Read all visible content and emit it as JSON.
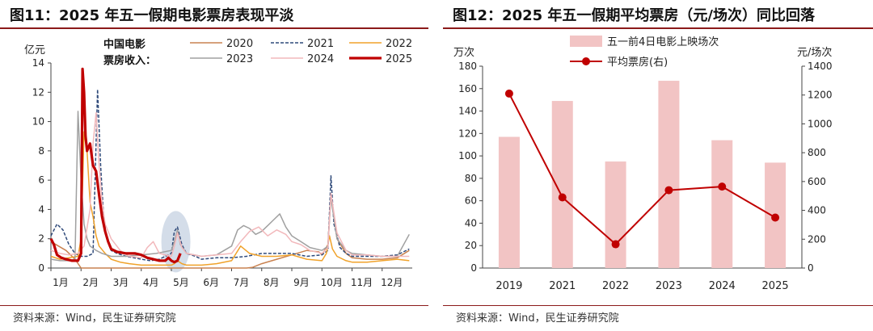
{
  "left_panel": {
    "title": "图11：2025 年五一假期电影票房表现平淡",
    "source": "资料来源：Wind，民生证券研究院",
    "legend_caption": "中国电影票房收入："
  },
  "right_panel": {
    "title": "图12：2025 年五一假期平均票房（元/场次）同比回落",
    "source": "资料来源：Wind，民生证券研究院"
  },
  "chart_data": [
    {
      "type": "line",
      "ylabel": "亿元",
      "ylim": [
        0,
        14
      ],
      "yticks": [
        0,
        2,
        4,
        6,
        8,
        10,
        12,
        14
      ],
      "x_tick_labels": [
        "1月",
        "2月",
        "3月",
        "4月",
        "5月",
        "6月",
        "7月",
        "8月",
        "9月",
        "10月",
        "11月",
        "12月"
      ],
      "legend_placement": "top-center",
      "grid": false,
      "annotation": "highlight ellipse around early May (五一 holiday)",
      "series": [
        {
          "name": "2020",
          "color": "#c98250",
          "style": "solid",
          "x": [
            0,
            0.5,
            0.8,
            1,
            2,
            3,
            4,
            5,
            6,
            6.5,
            6.7,
            7,
            7.5,
            8,
            8.5,
            8.9,
            9,
            9.2,
            9.3,
            9.5,
            9.8,
            10,
            10.5,
            11,
            11.5,
            11.9
          ],
          "y": [
            1.8,
            1.2,
            0.6,
            0,
            0,
            0,
            0,
            0,
            0,
            0,
            0.05,
            0.3,
            0.6,
            0.9,
            1.2,
            1.1,
            0.9,
            1.6,
            5.0,
            2.0,
            1.0,
            0.7,
            0.6,
            0.6,
            0.7,
            1.2
          ]
        },
        {
          "name": "2021",
          "color": "#2f4a7a",
          "style": "dashed",
          "x": [
            0,
            0.2,
            0.4,
            0.6,
            0.8,
            1,
            1.2,
            1.4,
            1.55,
            1.65,
            1.75,
            1.85,
            2,
            2.2,
            2.5,
            3,
            3.3,
            3.6,
            4,
            4.1,
            4.2,
            4.35,
            4.5,
            4.8,
            5,
            5.5,
            6,
            6.5,
            7,
            7.5,
            8,
            8.5,
            9,
            9.2,
            9.3,
            9.4,
            9.6,
            9.8,
            10,
            10.5,
            11,
            11.5,
            11.9
          ],
          "y": [
            2.2,
            3.0,
            2.6,
            1.6,
            1.0,
            0.8,
            0.8,
            1.0,
            12.2,
            7.0,
            3.5,
            2.0,
            1.2,
            1.0,
            0.8,
            0.6,
            0.5,
            0.6,
            1.0,
            2.5,
            2.8,
            1.6,
            1.0,
            0.8,
            0.6,
            0.7,
            0.7,
            0.8,
            1.0,
            1.0,
            1.0,
            0.8,
            0.9,
            1.2,
            6.3,
            3.0,
            1.4,
            1.0,
            0.8,
            0.8,
            0.8,
            0.9,
            1.3
          ]
        },
        {
          "name": "2022",
          "color": "#f0a22a",
          "style": "solid",
          "x": [
            0,
            0.3,
            0.6,
            0.9,
            1.0,
            1.1,
            1.2,
            1.3,
            1.4,
            1.5,
            1.6,
            1.8,
            2,
            2.3,
            2.6,
            3,
            3.5,
            4,
            4.1,
            4.2,
            4.35,
            4.5,
            5,
            5.5,
            6,
            6.3,
            6.6,
            7,
            7.5,
            8,
            8.5,
            9,
            9.15,
            9.25,
            9.35,
            9.5,
            9.8,
            10,
            10.5,
            11,
            11.5,
            11.9
          ],
          "y": [
            0.8,
            0.6,
            0.7,
            0.8,
            2.0,
            9.3,
            8.0,
            4.5,
            3.5,
            2.2,
            1.5,
            1.0,
            0.6,
            0.4,
            0.3,
            0.2,
            0.2,
            0.2,
            0.3,
            0.5,
            0.3,
            0.2,
            0.2,
            0.3,
            0.5,
            1.5,
            1.0,
            0.8,
            0.8,
            0.9,
            0.6,
            0.5,
            1.0,
            2.2,
            1.3,
            0.8,
            0.5,
            0.4,
            0.4,
            0.5,
            0.6,
            0.5
          ]
        },
        {
          "name": "2023",
          "color": "#a0a0a0",
          "style": "solid",
          "x": [
            0,
            0.3,
            0.6,
            0.8,
            0.9,
            1.0,
            1.1,
            1.2,
            1.3,
            1.5,
            1.7,
            2,
            2.5,
            3,
            3.5,
            4,
            4.1,
            4.2,
            4.3,
            4.5,
            5,
            5.5,
            6,
            6.2,
            6.4,
            6.6,
            6.8,
            7,
            7.2,
            7.4,
            7.6,
            7.8,
            8,
            8.3,
            8.6,
            9,
            9.2,
            9.3,
            9.5,
            9.8,
            10,
            10.5,
            11,
            11.5,
            11.9
          ],
          "y": [
            0.6,
            0.5,
            0.5,
            0.6,
            10.7,
            6.0,
            3.0,
            2.0,
            1.5,
            1.2,
            1.0,
            0.8,
            0.8,
            0.9,
            1.0,
            1.2,
            1.8,
            2.6,
            1.6,
            1.0,
            0.8,
            0.9,
            1.5,
            2.6,
            2.9,
            2.7,
            2.3,
            2.5,
            2.9,
            3.3,
            3.7,
            2.8,
            2.2,
            1.8,
            1.4,
            1.2,
            1.5,
            4.8,
            2.0,
            1.2,
            1.0,
            0.9,
            0.8,
            0.8,
            2.3
          ]
        },
        {
          "name": "2024",
          "color": "#f2b8bb",
          "style": "solid",
          "x": [
            0,
            0.3,
            0.6,
            0.9,
            1.1,
            1.3,
            1.4,
            1.5,
            1.6,
            1.7,
            1.8,
            2,
            2.3,
            2.6,
            3,
            3.2,
            3.4,
            3.6,
            4,
            4.1,
            4.2,
            4.35,
            4.5,
            5,
            5.5,
            6,
            6.3,
            6.6,
            6.9,
            7.2,
            7.5,
            7.8,
            8,
            8.3,
            8.6,
            9,
            9.2,
            9.3,
            9.5,
            9.8,
            10,
            10.5,
            11,
            11.5,
            11.9
          ],
          "y": [
            1.2,
            1.0,
            0.9,
            1.0,
            1.5,
            4.0,
            8.5,
            10.6,
            7.0,
            4.5,
            3.0,
            2.0,
            1.2,
            0.8,
            0.7,
            1.4,
            1.8,
            1.0,
            0.8,
            1.5,
            2.4,
            1.4,
            1.0,
            0.8,
            0.9,
            1.0,
            1.8,
            2.5,
            2.8,
            2.2,
            2.6,
            2.3,
            1.8,
            1.6,
            1.2,
            1.0,
            1.4,
            5.1,
            2.4,
            1.2,
            0.9,
            0.9,
            0.8,
            0.8,
            0.8
          ]
        },
        {
          "name": "2025",
          "color": "#c00000",
          "style": "solid",
          "x": [
            0,
            0.1,
            0.2,
            0.35,
            0.5,
            0.7,
            0.9,
            1.0,
            1.05,
            1.1,
            1.15,
            1.2,
            1.3,
            1.4,
            1.5,
            1.6,
            1.7,
            1.8,
            1.9,
            2.0,
            2.2,
            2.5,
            2.8,
            3.0,
            3.2,
            3.4,
            3.6,
            3.8,
            3.9,
            4.0,
            4.1,
            4.2,
            4.3
          ],
          "y": [
            2.0,
            1.6,
            0.9,
            0.7,
            0.6,
            0.5,
            0.5,
            1.0,
            13.6,
            12.0,
            9.0,
            8.0,
            8.5,
            7.0,
            6.6,
            5.0,
            3.5,
            2.5,
            1.8,
            1.3,
            1.1,
            1.0,
            1.0,
            0.9,
            0.7,
            0.6,
            0.5,
            0.5,
            0.7,
            0.5,
            0.4,
            0.5,
            1.0
          ]
        }
      ]
    },
    {
      "type": "bar+line",
      "categories": [
        "2019",
        "2021",
        "2022",
        "2023",
        "2024",
        "2025"
      ],
      "y_left_label": "万次",
      "y_right_label": "元/场次",
      "ylim_left": [
        0,
        180
      ],
      "yticks_left": [
        0,
        20,
        40,
        60,
        80,
        100,
        120,
        140,
        160,
        180
      ],
      "ylim_right": [
        0,
        1400
      ],
      "yticks_right": [
        0,
        200,
        400,
        600,
        800,
        1000,
        1200,
        1400
      ],
      "legend_placement": "top-center",
      "grid": false,
      "series": [
        {
          "name": "五一前4日电影上映场次",
          "kind": "bar",
          "axis": "left",
          "color": "#f2c4c4",
          "values": [
            117,
            149,
            95,
            167,
            114,
            94
          ]
        },
        {
          "name": "平均票房(右)",
          "kind": "line",
          "axis": "right",
          "color": "#c00000",
          "values": [
            1210,
            490,
            165,
            540,
            565,
            350
          ]
        }
      ]
    }
  ]
}
